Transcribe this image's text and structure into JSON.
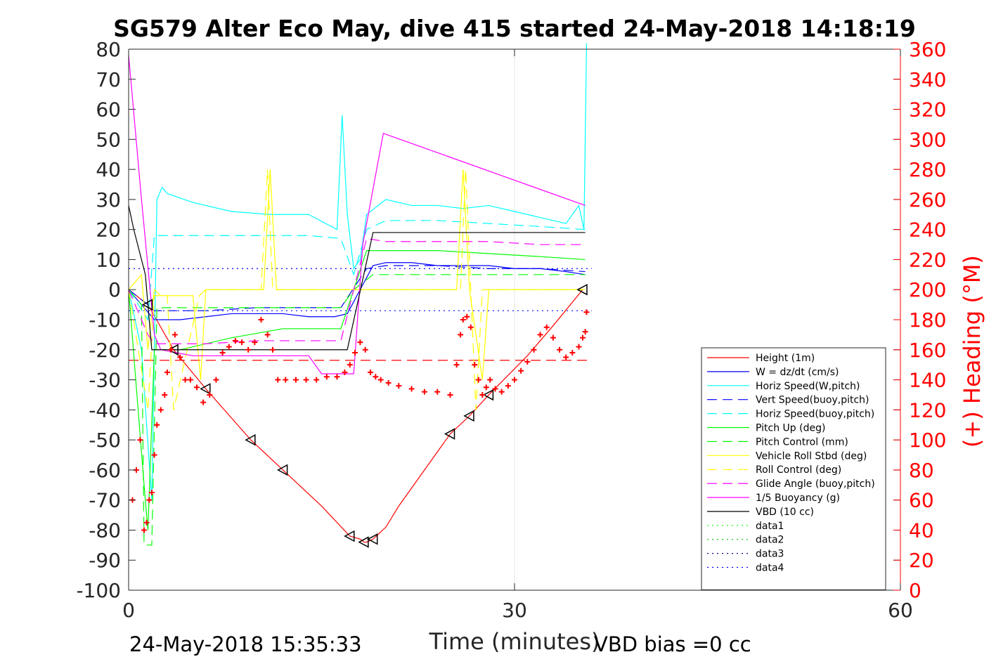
{
  "chart_data": {
    "type": "line",
    "title": "SG579 Alter Eco May, dive 415 started 24-May-2018 14:18:19",
    "xlabel": "Time (minutes)",
    "ylabel": "",
    "y2label": "(+) Heading (°M)",
    "xlim": [
      0,
      60
    ],
    "ylim": [
      -100,
      80
    ],
    "y2lim": [
      0,
      360
    ],
    "x_ticks": [
      "0",
      "30",
      "60"
    ],
    "x_tick_values": [
      0,
      30,
      60
    ],
    "y_ticks": [
      "80",
      "70",
      "60",
      "50",
      "40",
      "30",
      "20",
      "10",
      "0",
      "-10",
      "-20",
      "-30",
      "-40",
      "-50",
      "-60",
      "-70",
      "-80",
      "-90",
      "-100"
    ],
    "y_tick_values": [
      80,
      70,
      60,
      50,
      40,
      30,
      20,
      10,
      0,
      -10,
      -20,
      -30,
      -40,
      -50,
      -60,
      -70,
      -80,
      -90,
      -100
    ],
    "y2_ticks": [
      "360",
      "340",
      "320",
      "300",
      "280",
      "260",
      "240",
      "220",
      "200",
      "180",
      "160",
      "140",
      "120",
      "100",
      "80",
      "60",
      "40",
      "20",
      "0"
    ],
    "y2_tick_values": [
      360,
      340,
      320,
      300,
      280,
      260,
      240,
      220,
      200,
      180,
      160,
      140,
      120,
      100,
      80,
      60,
      40,
      20,
      0
    ],
    "grid": "x-only at 30",
    "legend_position": "bottom-right",
    "series": [
      {
        "name": "Height (1m)",
        "color": "#ff0000",
        "dash": "solid",
        "x": [
          0,
          1.5,
          3.5,
          6,
          9.5,
          12,
          15,
          17.2,
          18,
          18.3,
          18.5,
          19,
          20,
          21,
          23,
          25,
          26.5,
          28,
          31,
          33,
          35.3
        ],
        "y": [
          0,
          -5,
          -20,
          -33,
          -50,
          -60,
          -72,
          -82,
          -83,
          -84,
          -84,
          -83,
          -79,
          -72,
          -60,
          -48,
          -42,
          -35,
          -22,
          -12,
          0
        ]
      },
      {
        "name": "W = dz/dt (cm/s)",
        "color": "#0000ff",
        "dash": "solid",
        "x": [
          0,
          1,
          2,
          4,
          6,
          8,
          10,
          12,
          14,
          16,
          17,
          18,
          19,
          20,
          22,
          24,
          26,
          28,
          30,
          32,
          34,
          35.5
        ],
        "y": [
          0,
          -5,
          -10,
          -10,
          -9,
          -8,
          -8,
          -8,
          -9,
          -9,
          -8,
          0,
          8,
          9,
          9,
          8,
          8,
          8,
          7,
          7,
          6,
          5
        ]
      },
      {
        "name": "Horiz Speed(W,pitch)",
        "color": "#00ffff",
        "dash": "solid",
        "x": [
          0,
          1,
          1.8,
          2.2,
          2.6,
          3,
          5,
          8,
          11,
          14,
          16.2,
          16.6,
          17,
          17.5,
          18,
          18.5,
          20,
          22,
          24,
          26,
          28,
          30,
          32,
          34,
          35,
          35.4,
          35.6
        ],
        "y": [
          0,
          -20,
          -70,
          30,
          34,
          32,
          29,
          26,
          25,
          25,
          20,
          58,
          25,
          7,
          10,
          25,
          30,
          28,
          28,
          27,
          28,
          26,
          24,
          22,
          28,
          20,
          82
        ]
      },
      {
        "name": "Vert Speed(buoy,pitch)",
        "color": "#0000ff",
        "dash": "dash",
        "x": [
          0,
          1.5,
          2,
          6,
          10,
          14,
          16.5,
          18.5,
          20,
          24,
          28,
          32,
          35.5
        ],
        "y": [
          0,
          -5,
          -7,
          -7,
          -6,
          -6,
          -6,
          7,
          8,
          8,
          7,
          7,
          6
        ]
      },
      {
        "name": "Horiz Speed(buoy,pitch)",
        "color": "#00ffff",
        "dash": "dash",
        "x": [
          0,
          1.5,
          2,
          6,
          10,
          14,
          16.5,
          17.5,
          18.5,
          20,
          24,
          28,
          32,
          35.5
        ],
        "y": [
          0,
          -10,
          18,
          18,
          18,
          18,
          17,
          5,
          20,
          23,
          23,
          22,
          21,
          20
        ]
      },
      {
        "name": "Pitch Up (deg)",
        "color": "#00ff00",
        "dash": "solid",
        "x": [
          0,
          1.2,
          1.5,
          2,
          2.5,
          4,
          8,
          12,
          16.5,
          17.5,
          18.5,
          20,
          24,
          28,
          32,
          35.5
        ],
        "y": [
          0,
          -65,
          -80,
          -20,
          -20,
          -20,
          -16,
          -13,
          -13,
          0,
          13,
          13,
          13,
          12,
          11,
          10
        ]
      },
      {
        "name": "Pitch Control (mm)",
        "color": "#00ff00",
        "dash": "dash",
        "x": [
          0,
          1,
          1.2,
          1.8,
          2.2,
          16.5,
          17.5,
          19,
          35.5
        ],
        "y": [
          0,
          -5,
          -85,
          -85,
          -6,
          -6,
          0,
          5,
          5
        ]
      },
      {
        "name": "Vehicle Roll Stbd (deg)",
        "color": "#ffff00",
        "dash": "solid",
        "x": [
          0,
          1,
          1.5,
          2,
          2.5,
          5,
          5.6,
          6,
          10.5,
          11,
          11.5,
          12,
          17,
          19,
          25.5,
          26,
          26.5,
          27.5,
          28,
          35.5
        ],
        "y": [
          0,
          5,
          -20,
          0,
          -2,
          -2,
          -30,
          0,
          0,
          40,
          0,
          0,
          0,
          0,
          0,
          40,
          0,
          -30,
          0,
          0
        ]
      },
      {
        "name": "Roll Control (deg)",
        "color": "#ffff00",
        "dash": "dash",
        "x": [
          0,
          1.5,
          2,
          3,
          3.5,
          5.5,
          6,
          10.3,
          10.8,
          11.2,
          17,
          19,
          25.8,
          26.2,
          27,
          27.5,
          35.5
        ],
        "y": [
          0,
          -40,
          -2,
          -2,
          -40,
          -2,
          0,
          0,
          40,
          0,
          0,
          0,
          0,
          40,
          -40,
          0,
          0
        ]
      },
      {
        "name": "Glide Angle (buoy,pitch)",
        "color": "#ff00ff",
        "dash": "dash",
        "x": [
          0,
          1.5,
          2,
          6,
          10,
          14,
          16.5,
          18.5,
          20,
          24,
          28,
          32,
          35.5
        ],
        "y": [
          0,
          -15,
          -18,
          -18,
          -17,
          -17,
          -17,
          17,
          16,
          16,
          16,
          15,
          15
        ]
      },
      {
        "name": "1/5 Buoyancy (g)",
        "color": "#ff00ff",
        "dash": "solid",
        "x": [
          0,
          1,
          2,
          2.5,
          5,
          10,
          14,
          15,
          17.5,
          18.2,
          19.8,
          35.5
        ],
        "y": [
          78,
          30,
          -15,
          -20,
          -22,
          -22,
          -22,
          -28,
          -28,
          15,
          52,
          28
        ]
      },
      {
        "name": "VBD (10 cc)",
        "color": "#000000",
        "dash": "solid",
        "x": [
          0,
          0.4,
          1.3,
          1.8,
          6,
          12,
          16,
          16.5,
          17,
          19,
          19.5,
          35.5
        ],
        "y": [
          28,
          20,
          5,
          -20,
          -20,
          -20,
          -20,
          -20,
          -20,
          19,
          19,
          19
        ]
      },
      {
        "name": "data1",
        "color": "#00ff00",
        "dash": "dot",
        "x": [],
        "y": []
      },
      {
        "name": "data2",
        "color": "#00cc00",
        "dash": "dot",
        "x": [],
        "y": []
      },
      {
        "name": "data3",
        "color": "#00008b",
        "dash": "dot",
        "x": [],
        "y": []
      },
      {
        "name": "data4",
        "color": "#0000ff",
        "dash": "dot",
        "x": [],
        "y": []
      }
    ],
    "reference_lines": [
      {
        "y": 7,
        "color": "#0000ff",
        "dash": "dot",
        "x": [
          0,
          36
        ]
      },
      {
        "y": -7,
        "color": "#0000ff",
        "dash": "dot",
        "x": [
          0,
          36
        ]
      },
      {
        "y": -23.5,
        "color": "#ff0000",
        "dash": "dash",
        "x": [
          0,
          36
        ]
      }
    ],
    "heading_series": {
      "name": "(+) Heading (°M)",
      "color": "#ff0000",
      "marker": "+",
      "x": [
        0.3,
        0.6,
        0.9,
        1.2,
        1.4,
        1.6,
        1.8,
        2.0,
        2.2,
        2.5,
        2.8,
        3.0,
        3.3,
        3.6,
        4.0,
        4.4,
        4.8,
        5.3,
        5.8,
        6.3,
        6.8,
        7.3,
        7.8,
        8.3,
        8.8,
        9.3,
        9.8,
        10.3,
        10.8,
        11.2,
        11.6,
        12.2,
        13,
        13.8,
        14.6,
        15.4,
        16.2,
        16.8,
        17.2,
        17.6,
        18,
        18.4,
        18.8,
        19.2,
        19.6,
        20.2,
        21,
        22,
        23,
        24,
        25,
        25.5,
        25.8,
        26.0,
        26.3,
        26.6,
        26.9,
        27.2,
        27.5,
        27.8,
        28.1,
        28.5,
        29,
        29.5,
        30,
        30.5,
        31,
        31.5,
        32,
        32.5,
        33,
        33.5,
        34,
        34.5,
        35,
        35.3,
        35.5,
        35.6
      ],
      "y": [
        60,
        80,
        100,
        40,
        45,
        60,
        65,
        90,
        110,
        120,
        130,
        145,
        160,
        170,
        155,
        140,
        140,
        135,
        125,
        130,
        140,
        158,
        162,
        166,
        165,
        160,
        165,
        180,
        170,
        160,
        140,
        140,
        140,
        140,
        140,
        142,
        142,
        145,
        150,
        158,
        165,
        160,
        145,
        142,
        140,
        138,
        136,
        134,
        132,
        132,
        130,
        150,
        170,
        180,
        182,
        175,
        150,
        140,
        130,
        135,
        140,
        134,
        132,
        136,
        140,
        146,
        152,
        160,
        170,
        175,
        168,
        160,
        155,
        158,
        162,
        168,
        172,
        185
      ]
    },
    "annotations": {
      "footer_left": "24-May-2018 15:35:33",
      "footer_right": "VBD bias =0 cc"
    }
  }
}
